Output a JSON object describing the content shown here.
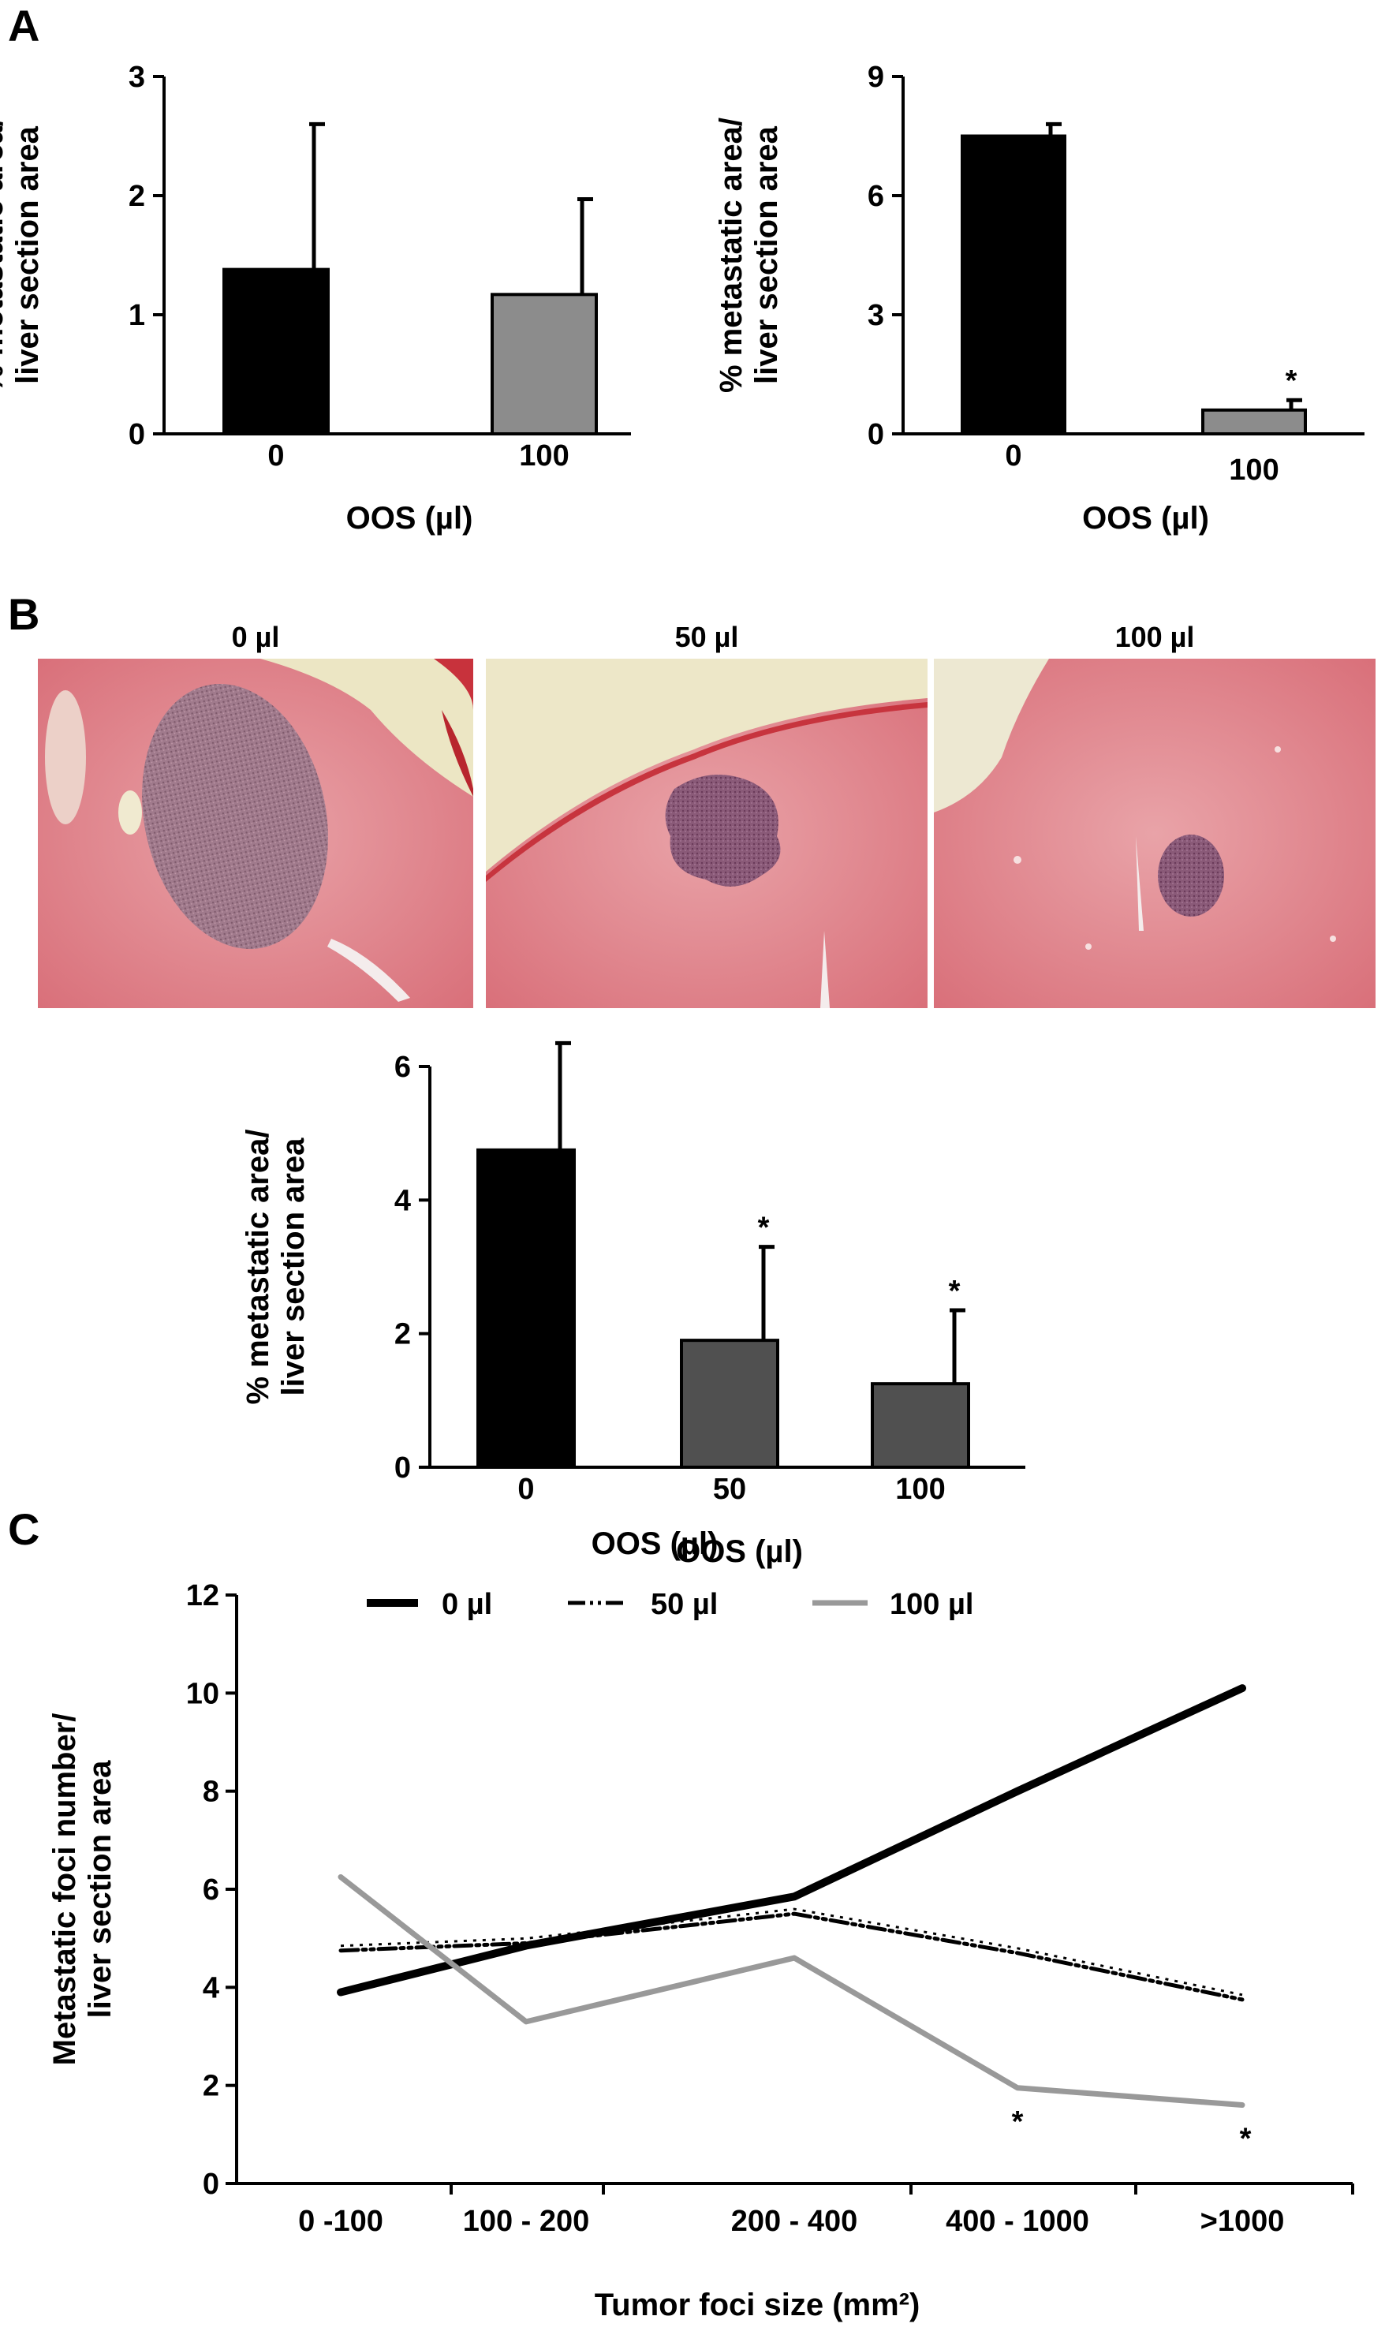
{
  "panels": {
    "A": "A",
    "B": "B",
    "C": "C"
  },
  "colors": {
    "black_bar": "#000000",
    "light_gray_bar": "#8c8c8c",
    "dark_gray_bar": "#505050",
    "line_0": "#000000",
    "line_50": "#000000",
    "line_100": "#999999"
  },
  "histology": {
    "labels": [
      "0 µl",
      "50 µl",
      "100 µl"
    ],
    "description_icons": [
      "liver-section-large-focus",
      "liver-section-medium-focus",
      "liver-section-small-focus"
    ]
  },
  "chart_data": [
    {
      "id": "A_left",
      "type": "bar",
      "categories": [
        "0",
        "100"
      ],
      "values": [
        1.38,
        1.17
      ],
      "errors": [
        1.22,
        0.8
      ],
      "bar_colors": [
        "#000000",
        "#8c8c8c"
      ],
      "significance": [
        "",
        ""
      ],
      "xlabel": "OOS   (µl)",
      "ylabel_lines": [
        "% metastatic area/",
        "liver section area"
      ],
      "ylim": [
        0,
        3
      ],
      "yticks": [
        "0",
        "1",
        "2",
        "3"
      ]
    },
    {
      "id": "A_right",
      "type": "bar",
      "categories": [
        "0",
        "100"
      ],
      "values": [
        7.5,
        0.6
      ],
      "errors": [
        0.3,
        0.25
      ],
      "bar_colors": [
        "#000000",
        "#8c8c8c"
      ],
      "significance": [
        "",
        "*"
      ],
      "xlabel": "OOS   (µl)",
      "ylabel_lines": [
        "% metastatic area/",
        "liver section area"
      ],
      "ylim": [
        0,
        9
      ],
      "yticks": [
        "0",
        "3",
        "6",
        "9"
      ]
    },
    {
      "id": "B",
      "type": "bar",
      "categories": [
        "0",
        "50",
        "100"
      ],
      "values": [
        4.75,
        1.9,
        1.25
      ],
      "errors": [
        1.6,
        1.4,
        1.1
      ],
      "bar_colors": [
        "#000000",
        "#505050",
        "#505050"
      ],
      "significance": [
        "",
        "*",
        "*"
      ],
      "xlabel": "OOS  (µl)",
      "ylabel_lines": [
        "% metastatic area/",
        "liver section area"
      ],
      "ylim": [
        0,
        6
      ],
      "yticks": [
        "0",
        "2",
        "4",
        "6"
      ]
    },
    {
      "id": "C",
      "type": "line",
      "categories": [
        "0 -100",
        "100 - 200",
        "200 - 400",
        "400 - 1000",
        ">1000"
      ],
      "series": [
        {
          "name": "0 µl",
          "values": [
            3.9,
            4.85,
            5.85,
            8.0,
            10.1
          ],
          "style": "solid-thick"
        },
        {
          "name": "50 µl",
          "values": [
            4.75,
            4.9,
            5.5,
            4.7,
            3.75
          ],
          "style": "dash-dot"
        },
        {
          "name": "100 µl",
          "values": [
            6.25,
            3.3,
            4.6,
            1.95,
            1.6
          ],
          "style": "solid-gray"
        }
      ],
      "significance_marks": [
        {
          "series": "100 µl",
          "index": 3,
          "text": "*"
        },
        {
          "series": "100 µl",
          "index": 4,
          "text": "*"
        }
      ],
      "legend_title": "OOS   (µl)",
      "legend_position": "top",
      "xlabel": "Tumor foci size (mm²)",
      "ylabel_lines": [
        "Metastatic foci number/",
        "liver section area"
      ],
      "ylim": [
        0,
        12
      ],
      "yticks": [
        "0",
        "2",
        "4",
        "6",
        "8",
        "10",
        "12"
      ]
    }
  ]
}
